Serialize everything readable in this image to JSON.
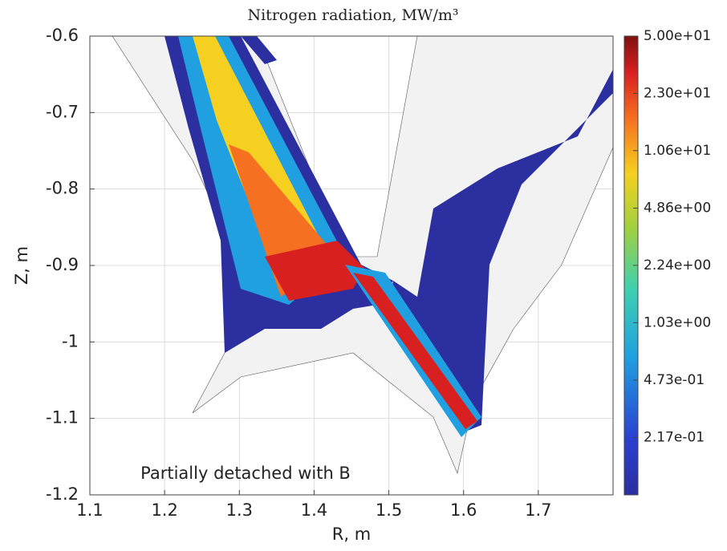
{
  "chart_data": {
    "type": "mesh",
    "title": "Nitrogen radiation,  MW/m³",
    "x_label": "R, m",
    "y_label": "Z, m",
    "annotation": "Partially detached with B",
    "xlim": [
      1.1,
      1.8
    ],
    "xticks": [
      1.1,
      1.2,
      1.3,
      1.4,
      1.5,
      1.6,
      1.7
    ],
    "ylim": [
      -1.2,
      -0.6
    ],
    "yticks": [
      -1.2,
      -1.1,
      -1,
      -0.9,
      -0.8,
      -0.7,
      -0.6
    ],
    "grid": true,
    "colorbar": {
      "scale": "log",
      "lim": [
        0.1,
        50
      ],
      "ticks": [
        {
          "value": 50,
          "label": "5.00e+01"
        },
        {
          "value": 23,
          "label": "2.30e+01"
        },
        {
          "value": 10.6,
          "label": "1.06e+01"
        },
        {
          "value": 4.86,
          "label": "4.86e+00"
        },
        {
          "value": 2.24,
          "label": "2.24e+00"
        },
        {
          "value": 1.03,
          "label": "1.03e+00"
        },
        {
          "value": 0.473,
          "label": "4.73e-01"
        },
        {
          "value": 0.217,
          "label": "2.17e-01"
        }
      ]
    }
  }
}
